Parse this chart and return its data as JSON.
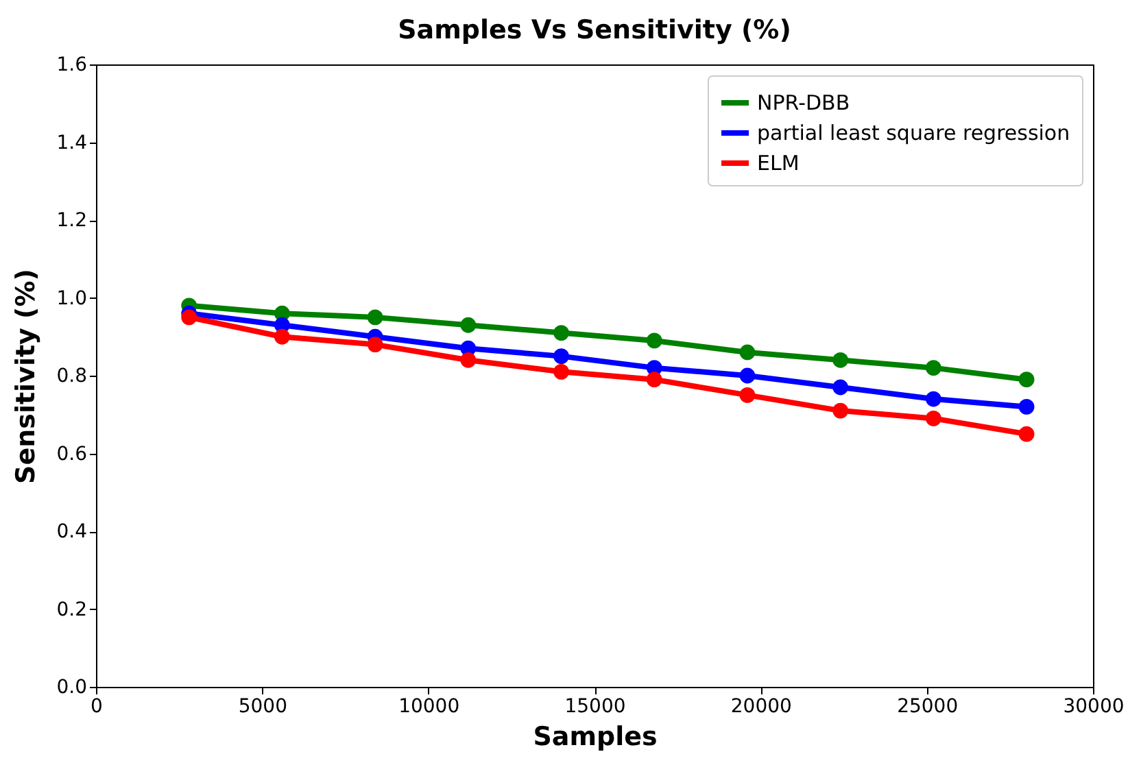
{
  "chart_data": {
    "type": "line",
    "title": "Samples  Vs Sensitivity (%)",
    "xlabel": "Samples",
    "ylabel": "Sensitivity (%)",
    "x": [
      2800,
      5600,
      8400,
      11200,
      14000,
      16800,
      19600,
      22400,
      25200,
      28000
    ],
    "series": [
      {
        "name": "NPR-DBB",
        "color": "#008000",
        "values": [
          0.98,
          0.96,
          0.95,
          0.93,
          0.91,
          0.89,
          0.86,
          0.84,
          0.82,
          0.79
        ]
      },
      {
        "name": "partial least square regression",
        "color": "#0000ff",
        "values": [
          0.96,
          0.93,
          0.9,
          0.87,
          0.85,
          0.82,
          0.8,
          0.77,
          0.74,
          0.72
        ]
      },
      {
        "name": "ELM",
        "color": "#ff0000",
        "values": [
          0.95,
          0.9,
          0.88,
          0.84,
          0.81,
          0.79,
          0.75,
          0.71,
          0.69,
          0.65
        ]
      }
    ],
    "xlim": [
      0,
      30000
    ],
    "xticks": [
      0,
      5000,
      10000,
      15000,
      20000,
      25000,
      30000
    ],
    "ylim": [
      0,
      1.6
    ],
    "yticks": [
      {
        "value": 0,
        "label": "0.0"
      },
      0.2,
      0.4,
      0.6,
      0.8,
      {
        "value": 1,
        "label": "1.0"
      },
      1.2,
      1.4,
      1.6
    ],
    "legend": "top right",
    "marker": "circle",
    "line_style": "solid",
    "grid": false
  }
}
